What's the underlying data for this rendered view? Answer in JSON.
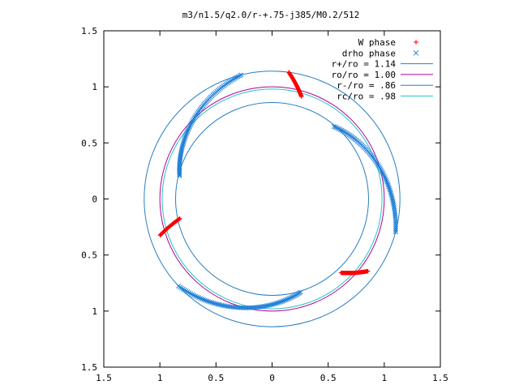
{
  "chart_data": {
    "type": "scatter",
    "title": "m3/n1.5/q2.0/r-+.75-j385/M0.2/512",
    "xlabel": "",
    "ylabel": "",
    "xlim": [
      -1.5,
      1.5
    ],
    "ylim": [
      -1.5,
      1.5
    ],
    "x_ticks": [
      -1.5,
      -1,
      -0.5,
      0,
      0.5,
      1,
      1.5
    ],
    "y_ticks": [
      -1.5,
      -1,
      -0.5,
      0,
      0.5,
      1,
      1.5
    ],
    "x_tick_labels": [
      "1.5",
      "1",
      "0.5",
      "0",
      "0.5",
      "1",
      "1.5"
    ],
    "y_tick_labels": [
      "1.5",
      "1",
      "0.5",
      "0",
      "0.5",
      "1",
      "1.5"
    ],
    "grid": false,
    "legend_position": "top-right",
    "series": [
      {
        "name": "W phase",
        "kind": "points",
        "marker": "plus",
        "color": "#ff0000",
        "arcs": [
          {
            "r_start": 1.14,
            "r_end": 0.95,
            "theta_start_deg": 82.5,
            "theta_end_deg": 74.0
          },
          {
            "r_start": 1.05,
            "r_end": 0.84,
            "theta_start_deg": 198.0,
            "theta_end_deg": 192.0
          },
          {
            "r_start": 0.9,
            "r_end": 1.07,
            "theta_start_deg": 313.0,
            "theta_end_deg": 323.0
          }
        ]
      },
      {
        "name": "drho phase",
        "kind": "points",
        "marker": "cross",
        "color": "#1f7fd6",
        "arcs": [
          {
            "r_start": 0.85,
            "r_end": 1.14,
            "theta_start_deg": 166.0,
            "theta_end_deg": 104.0
          },
          {
            "r_start": 0.85,
            "r_end": 1.14,
            "theta_start_deg": 49.5,
            "theta_end_deg": -15.0
          },
          {
            "r_start": 1.14,
            "r_end": 0.87,
            "theta_start_deg": 223.0,
            "theta_end_deg": 287.0
          }
        ]
      },
      {
        "name": "r+/ro = 1.14",
        "kind": "circle",
        "radius": 1.14,
        "color": "#2a7fc4"
      },
      {
        "name": "ro/ro = 1.00",
        "kind": "circle",
        "radius": 1.0,
        "color": "#b0009a"
      },
      {
        "name": "r-/ro = .86",
        "kind": "circle",
        "radius": 0.86,
        "color": "#2a7fc4"
      },
      {
        "name": "rc/ro = .98",
        "kind": "circle",
        "radius": 0.98,
        "color": "#26c4c4"
      }
    ]
  }
}
